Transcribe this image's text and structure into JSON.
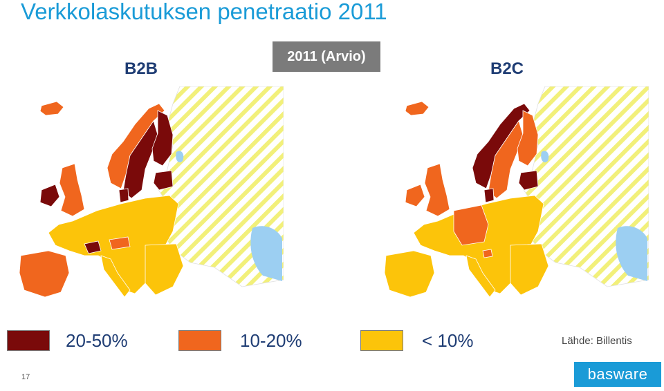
{
  "title": "Verkkolaskutuksen penetraatio 2011",
  "badge": "2011 (Arvio)",
  "maps": {
    "b2b": {
      "label": "B2B"
    },
    "b2c": {
      "label": "B2C"
    }
  },
  "legend": [
    {
      "label": "20-50%",
      "color": "#7a0a0a"
    },
    {
      "label": "10-20%",
      "color": "#f0661e"
    },
    {
      "label": "< 10%",
      "color": "#fcc40a"
    }
  ],
  "colors": {
    "high": "#7a0a0a",
    "mid": "#f0661e",
    "low": "#fcc40a",
    "no_data_stripe": "#f2f07a",
    "water": "#9ccff2",
    "border": "#ffffff"
  },
  "source": "Lähde: Billentis",
  "page_number": "17",
  "logo": "basware"
}
